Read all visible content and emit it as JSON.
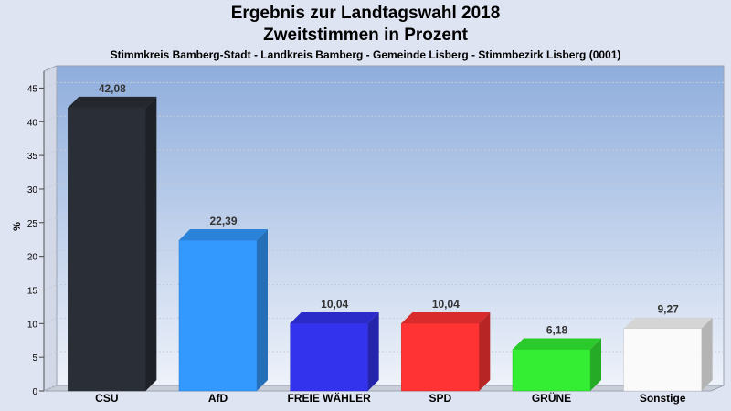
{
  "header": {
    "title": "Ergebnis zur Landtagswahl 2018",
    "subtitle": "Zweitstimmen in Prozent",
    "caption": "Stimmkreis Bamberg-Stadt - Landkreis Bamberg - Gemeinde Lisberg - Stimmbezirk Lisberg (0001)"
  },
  "chart_data": {
    "type": "bar",
    "title": "Ergebnis zur Landtagswahl 2018",
    "subtitle": "Zweitstimmen in Prozent",
    "ylabel": "%",
    "xlabel": "",
    "ylim": [
      0,
      47.5
    ],
    "yticks": [
      0,
      5,
      10,
      15,
      20,
      25,
      30,
      35,
      40,
      45
    ],
    "grid": true,
    "categories": [
      "CSU",
      "AfD",
      "FREIE WÄHLER",
      "SPD",
      "GRÜNE",
      "Sonstige"
    ],
    "values": [
      42.08,
      22.39,
      10.04,
      10.04,
      6.18,
      9.27
    ],
    "value_labels": [
      "42,08",
      "22,39",
      "10,04",
      "10,04",
      "6,18",
      "9,27"
    ],
    "colors": [
      "#2a2e36",
      "#3399ff",
      "#3333ee",
      "#ff3333",
      "#33ee33",
      "#fafafa"
    ]
  }
}
